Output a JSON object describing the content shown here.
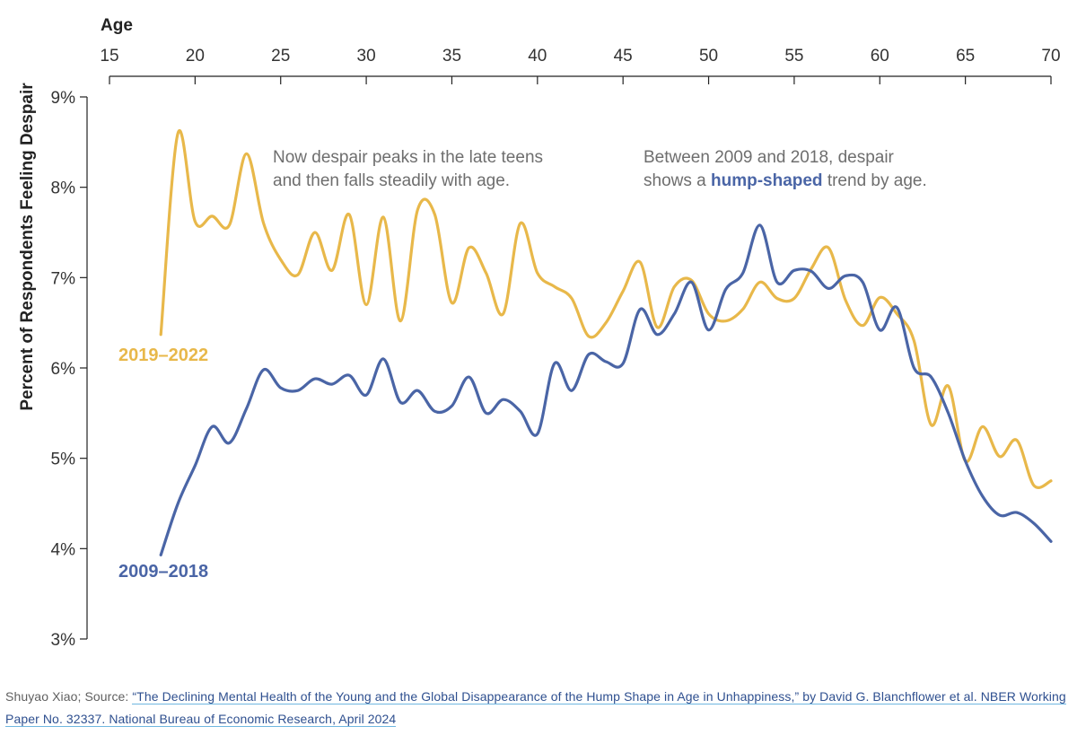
{
  "chart_data": {
    "type": "line",
    "xlabel": "Age",
    "ylabel": "Percent of Respondents Feeling Despair",
    "xlim": [
      15,
      70
    ],
    "ylim": [
      3,
      9
    ],
    "x_ticks": [
      "15",
      "20",
      "25",
      "30",
      "35",
      "40",
      "45",
      "50",
      "55",
      "60",
      "65",
      "70"
    ],
    "y_ticks": [
      "3%",
      "4%",
      "5%",
      "6%",
      "7%",
      "8%",
      "9%"
    ],
    "x_axis_position": "top",
    "grid": false,
    "colors": {
      "2009–2018": "#4a65a6",
      "2019–2022": "#e8b84a"
    },
    "annotations": {
      "left_line1": "Now despair peaks in the late teens",
      "left_line2": "and then falls steadily with age.",
      "right_line1": "Between 2009 and 2018, despair",
      "right_line2_prefix": "shows a ",
      "right_line2_bold": "hump-shaped",
      "right_line2_suffix": " trend by age."
    },
    "series": [
      {
        "name": "2019–2022",
        "x": [
          18,
          19,
          20,
          21,
          22,
          23,
          24,
          25,
          26,
          27,
          28,
          29,
          30,
          31,
          32,
          33,
          34,
          35,
          36,
          37,
          38,
          39,
          40,
          41,
          42,
          43,
          44,
          45,
          46,
          47,
          48,
          49,
          50,
          51,
          52,
          53,
          54,
          55,
          56,
          57,
          58,
          59,
          60,
          61,
          62,
          63,
          64,
          65,
          66,
          67,
          68,
          69,
          70
        ],
        "values": [
          6.37,
          8.6,
          7.62,
          7.68,
          7.58,
          8.37,
          7.6,
          7.2,
          7.03,
          7.5,
          7.08,
          7.7,
          6.7,
          7.67,
          6.52,
          7.75,
          7.7,
          6.72,
          7.33,
          7.05,
          6.6,
          7.6,
          7.05,
          6.9,
          6.77,
          6.35,
          6.5,
          6.85,
          7.17,
          6.45,
          6.9,
          6.97,
          6.6,
          6.52,
          6.65,
          6.95,
          6.77,
          6.77,
          7.1,
          7.33,
          6.75,
          6.47,
          6.78,
          6.6,
          6.3,
          5.37,
          5.8,
          4.97,
          5.35,
          5.02,
          5.2,
          4.7,
          4.75
        ]
      },
      {
        "name": "2009–2018",
        "x": [
          18,
          19,
          20,
          21,
          22,
          23,
          24,
          25,
          26,
          27,
          28,
          29,
          30,
          31,
          32,
          33,
          34,
          35,
          36,
          37,
          38,
          39,
          40,
          41,
          42,
          43,
          44,
          45,
          46,
          47,
          48,
          49,
          50,
          51,
          52,
          53,
          54,
          55,
          56,
          57,
          58,
          59,
          60,
          61,
          62,
          63,
          64,
          65,
          66,
          67,
          68,
          69,
          70
        ],
        "values": [
          3.93,
          4.5,
          4.92,
          5.35,
          5.17,
          5.55,
          5.98,
          5.78,
          5.75,
          5.88,
          5.82,
          5.92,
          5.7,
          6.1,
          5.62,
          5.75,
          5.52,
          5.58,
          5.9,
          5.5,
          5.65,
          5.52,
          5.27,
          6.05,
          5.75,
          6.15,
          6.07,
          6.05,
          6.65,
          6.37,
          6.6,
          6.95,
          6.42,
          6.87,
          7.05,
          7.58,
          6.95,
          7.08,
          7.07,
          6.88,
          7.02,
          6.95,
          6.42,
          6.67,
          6.0,
          5.9,
          5.5,
          4.97,
          4.58,
          4.37,
          4.4,
          4.28,
          4.08
        ]
      }
    ]
  },
  "source": {
    "prefix": "Shuyao Xiao; Source: ",
    "link_text": "“The Declining Mental Health of the Young and the Global Disappearance of the Hump Shape in Age in Unhappiness,” by David G. Blanchflower et al. NBER Working Paper No. 32337. National Bureau of Economic Research, April 2024"
  }
}
